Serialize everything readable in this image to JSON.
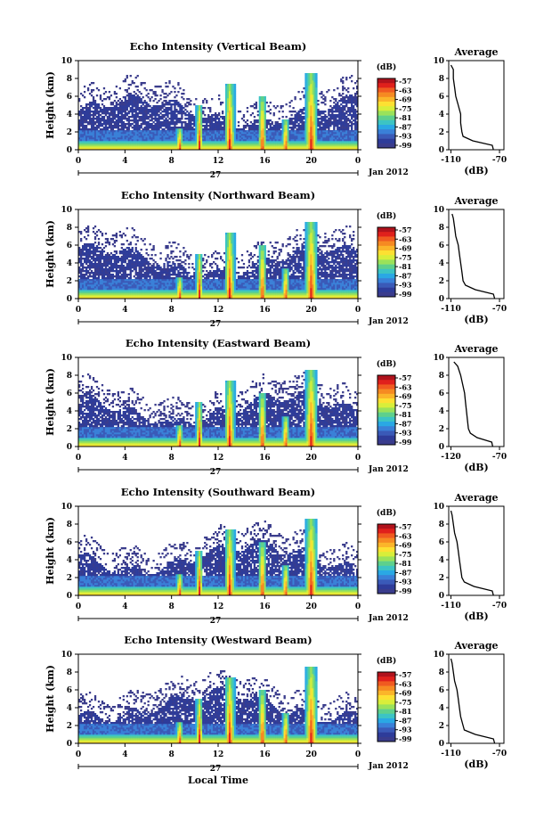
{
  "figure": {
    "xlabel": "Local Time",
    "day_label": "27",
    "month_label": "Jan 2012",
    "x_ticks": [
      "0",
      "4",
      "8",
      "12",
      "16",
      "20",
      "0"
    ],
    "y_ticks": [
      "0",
      "2",
      "4",
      "6",
      "8",
      "10"
    ],
    "ylabel": "Height (km)",
    "colorbar_unit": "(dB)",
    "colorbar_ticks": [
      "-57",
      "-63",
      "-69",
      "-75",
      "-81",
      "-87",
      "-93",
      "-99"
    ],
    "average_title": "Average",
    "average_xlabel": "(dB)"
  },
  "chart_data": [
    {
      "type": "heatmap",
      "title": "Echo Intensity (Vertical Beam)",
      "xlabel": "Local Time",
      "ylabel": "Height (km)",
      "xlim": [
        0,
        24
      ],
      "ylim": [
        0,
        10
      ],
      "colorbar": {
        "label": "(dB)",
        "range": [
          -99,
          -57
        ],
        "ticks": [
          -57,
          -63,
          -69,
          -75,
          -81,
          -87,
          -93,
          -99
        ]
      },
      "average_profile": {
        "title": "Average",
        "xlabel": "(dB)",
        "x_ticks": [
          "-110",
          "-70"
        ],
        "xlim": [
          -110,
          -70
        ],
        "height_km": [
          0,
          0.5,
          1,
          1.5,
          2,
          3,
          4,
          5,
          6,
          7,
          8,
          9,
          9.5
        ],
        "db": [
          -75,
          -76,
          -92,
          -100,
          -101,
          -102,
          -102,
          -104,
          -106,
          -107,
          -108,
          -108,
          -110
        ]
      }
    },
    {
      "type": "heatmap",
      "title": "Echo Intensity (Northward Beam)",
      "xlabel": "Local Time",
      "ylabel": "Height (km)",
      "xlim": [
        0,
        24
      ],
      "ylim": [
        0,
        10
      ],
      "colorbar": {
        "label": "(dB)",
        "range": [
          -99,
          -57
        ],
        "ticks": [
          -57,
          -63,
          -69,
          -75,
          -81,
          -87,
          -93,
          -99
        ]
      },
      "average_profile": {
        "title": "Average",
        "xlabel": "(dB)",
        "x_ticks": [
          "-110",
          "-70"
        ],
        "xlim": [
          -110,
          -70
        ],
        "height_km": [
          0,
          0.5,
          1,
          1.5,
          2,
          3,
          4,
          5,
          6,
          7,
          8,
          9,
          9.5
        ],
        "db": [
          -74,
          -75,
          -90,
          -98,
          -100,
          -101,
          -102,
          -103,
          -104,
          -106,
          -107,
          -108,
          -109
        ]
      }
    },
    {
      "type": "heatmap",
      "title": "Echo Intensity (Eastward Beam)",
      "xlabel": "Local Time",
      "ylabel": "Height (km)",
      "xlim": [
        0,
        24
      ],
      "ylim": [
        0,
        10
      ],
      "colorbar": {
        "label": "(dB)",
        "range": [
          -99,
          -57
        ],
        "ticks": [
          -57,
          -63,
          -69,
          -75,
          -81,
          -87,
          -93,
          -99
        ]
      },
      "average_profile": {
        "title": "Average",
        "xlabel": "(dB)",
        "x_ticks": [
          "-120",
          "-70"
        ],
        "xlim": [
          -120,
          -70
        ],
        "height_km": [
          0,
          0.5,
          1,
          1.5,
          2,
          3,
          4,
          5,
          6,
          7,
          8,
          9,
          9.5
        ],
        "db": [
          -77,
          -78,
          -93,
          -100,
          -102,
          -103,
          -104,
          -105,
          -106,
          -108,
          -110,
          -113,
          -117
        ]
      }
    },
    {
      "type": "heatmap",
      "title": "Echo Intensity (Southward Beam)",
      "xlabel": "Local Time",
      "ylabel": "Height (km)",
      "xlim": [
        0,
        24
      ],
      "ylim": [
        0,
        10
      ],
      "colorbar": {
        "label": "(dB)",
        "range": [
          -99,
          -57
        ],
        "ticks": [
          -57,
          -63,
          -69,
          -75,
          -81,
          -87,
          -93,
          -99
        ]
      },
      "average_profile": {
        "title": "Average",
        "xlabel": "(dB)",
        "x_ticks": [
          "-110",
          "-70"
        ],
        "xlim": [
          -110,
          -70
        ],
        "height_km": [
          0,
          0.5,
          1,
          1.5,
          2,
          3,
          4,
          5,
          6,
          7,
          8,
          9,
          9.5
        ],
        "db": [
          -75,
          -76,
          -91,
          -99,
          -101,
          -102,
          -103,
          -104,
          -105,
          -107,
          -108,
          -109,
          -110
        ]
      }
    },
    {
      "type": "heatmap",
      "title": "Echo Intensity (Westward Beam)",
      "xlabel": "Local Time",
      "ylabel": "Height (km)",
      "xlim": [
        0,
        24
      ],
      "ylim": [
        0,
        10
      ],
      "colorbar": {
        "label": "(dB)",
        "range": [
          -99,
          -57
        ],
        "ticks": [
          -57,
          -63,
          -69,
          -75,
          -81,
          -87,
          -93,
          -99
        ]
      },
      "average_profile": {
        "title": "Average",
        "xlabel": "(dB)",
        "x_ticks": [
          "-110",
          "-70"
        ],
        "xlim": [
          -110,
          -70
        ],
        "height_km": [
          0,
          0.5,
          1,
          1.5,
          2,
          3,
          4,
          5,
          6,
          7,
          8,
          9,
          9.5
        ],
        "db": [
          -74,
          -75,
          -90,
          -99,
          -100,
          -102,
          -103,
          -104,
          -105,
          -107,
          -108,
          -109,
          -110
        ]
      }
    }
  ],
  "colors": {
    "colorbar_scale": [
      "#b0121c",
      "#e0201c",
      "#f05a20",
      "#f68a22",
      "#fbb52a",
      "#fde032",
      "#d8ee3a",
      "#9ae25a",
      "#5ed08c",
      "#3cc4c4",
      "#2aa8e4",
      "#3a80d8",
      "#3a5ab8",
      "#2e3c9a",
      "#3a3c8c"
    ],
    "background_echo": "#3a3c8c"
  }
}
